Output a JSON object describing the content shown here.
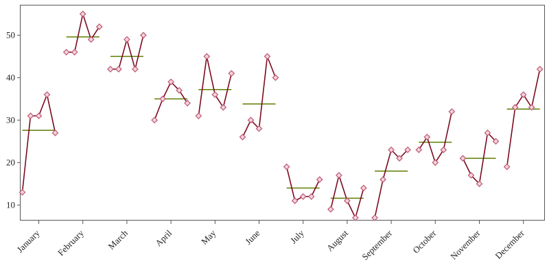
{
  "chart_data": {
    "type": "line",
    "subtype": "cycle-plot",
    "title": "",
    "xlabel": "",
    "ylabel": "",
    "ylim": [
      6.5,
      57
    ],
    "y_ticks": [
      10,
      20,
      30,
      40,
      50
    ],
    "grid": false,
    "legend": "none",
    "colors": {
      "series": "#7a0a1f",
      "marker": "#c0607a",
      "mean": "#5e7d00"
    },
    "groups": [
      {
        "label": "January",
        "values": [
          13,
          31,
          31,
          36,
          27
        ],
        "mean": 27.6
      },
      {
        "label": "February",
        "values": [
          46,
          46,
          55,
          49,
          52
        ],
        "mean": 49.6
      },
      {
        "label": "March",
        "values": [
          42,
          42,
          49,
          42,
          50
        ],
        "mean": 45.0
      },
      {
        "label": "April",
        "values": [
          30,
          35,
          39,
          37,
          34
        ],
        "mean": 35.0
      },
      {
        "label": "May",
        "values": [
          31,
          45,
          36,
          33,
          41
        ],
        "mean": 37.2
      },
      {
        "label": "June",
        "values": [
          26,
          30,
          28,
          45,
          40
        ],
        "mean": 33.8
      },
      {
        "label": "July",
        "values": [
          19,
          11,
          12,
          12,
          16
        ],
        "mean": 14.0
      },
      {
        "label": "August",
        "values": [
          9,
          17,
          11,
          7,
          14
        ],
        "mean": 11.6
      },
      {
        "label": "September",
        "values": [
          7,
          16,
          23,
          21,
          23
        ],
        "mean": 18.0
      },
      {
        "label": "October",
        "values": [
          23,
          26,
          20,
          23,
          32
        ],
        "mean": 24.8
      },
      {
        "label": "November",
        "values": [
          21,
          17,
          15,
          27,
          25
        ],
        "mean": 21.0
      },
      {
        "label": "December",
        "values": [
          19,
          33,
          36,
          33,
          42
        ],
        "mean": 32.6
      }
    ]
  }
}
